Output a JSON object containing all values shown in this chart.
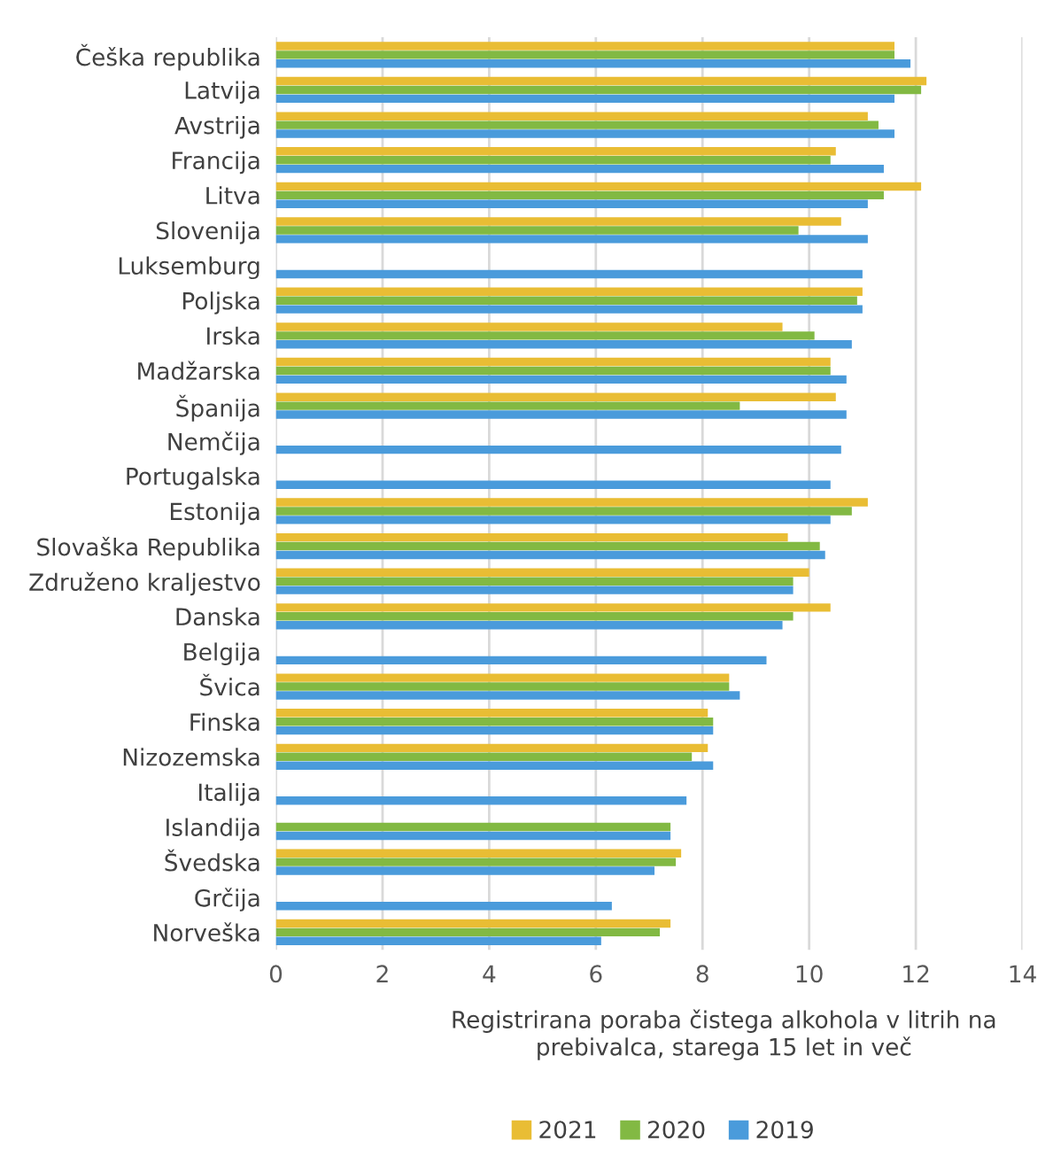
{
  "chart_data": {
    "type": "bar",
    "orientation": "horizontal",
    "xlabel": "Registrirana poraba čistega alkohola v litrih na prebivalca, starega 15 let in več",
    "categories": [
      "Češka republika",
      "Latvija",
      "Avstrija",
      "Francija",
      "Litva",
      "Slovenija",
      "Luksemburg",
      "Poljska",
      "Irska",
      "Madžarska",
      "Španija",
      "Nemčija",
      "Portugalska",
      "Estonija",
      "Slovaška Republika",
      "Združeno kraljestvo",
      "Danska",
      "Belgija",
      "Švica",
      "Finska",
      "Nizozemska",
      "Italija",
      "Islandija",
      "Švedska",
      "Grčija",
      "Norveška"
    ],
    "series": [
      {
        "name": "2021",
        "color": "#e9bd34",
        "values": [
          11.6,
          12.2,
          11.1,
          10.5,
          12.1,
          10.6,
          null,
          11.0,
          9.5,
          10.4,
          10.5,
          null,
          null,
          11.1,
          9.6,
          10.0,
          10.4,
          null,
          8.5,
          8.1,
          8.1,
          null,
          null,
          7.6,
          null,
          7.4
        ]
      },
      {
        "name": "2020",
        "color": "#82b943",
        "values": [
          11.6,
          12.1,
          11.3,
          10.4,
          11.4,
          9.8,
          null,
          10.9,
          10.1,
          10.4,
          8.7,
          null,
          null,
          10.8,
          10.2,
          9.7,
          9.7,
          null,
          8.5,
          8.2,
          7.8,
          null,
          7.4,
          7.5,
          null,
          7.2
        ]
      },
      {
        "name": "2019",
        "color": "#4a9bdb",
        "values": [
          11.9,
          11.6,
          11.6,
          11.4,
          11.1,
          11.1,
          11.0,
          11.0,
          10.8,
          10.7,
          10.7,
          10.6,
          10.4,
          10.4,
          10.3,
          9.7,
          9.5,
          9.2,
          8.7,
          8.2,
          8.2,
          7.7,
          7.4,
          7.1,
          6.3,
          6.1
        ]
      }
    ],
    "xlim": [
      0,
      14
    ],
    "xticks": [
      0,
      2,
      4,
      6,
      8,
      10,
      12,
      14
    ],
    "grid": "x",
    "legend": "bottom"
  }
}
